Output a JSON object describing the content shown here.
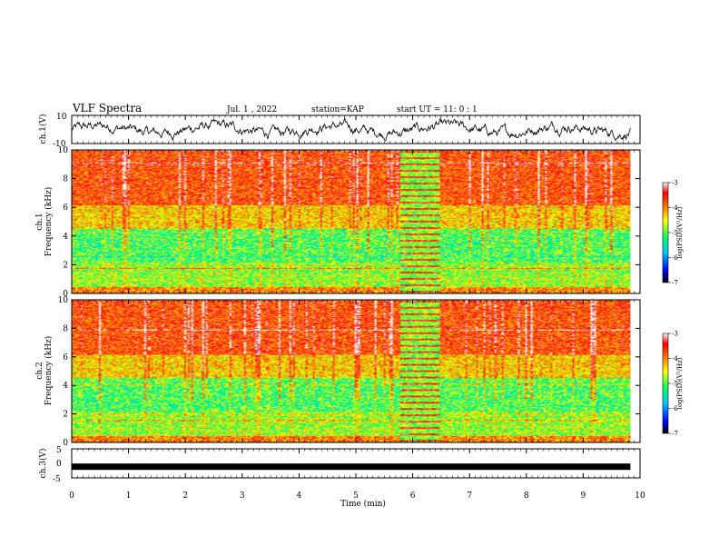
{
  "header": {
    "title": "VLF Spectra",
    "date": "Jul. 1 , 2022",
    "station": "station=KAP",
    "start": "start UT = 11: 0 : 1"
  },
  "colors": {
    "spectrogram_scale": [
      "#000000",
      "#0000ff",
      "#00c8ff",
      "#00ff66",
      "#ffff00",
      "#ff8000",
      "#ff0000",
      "#ffffff"
    ]
  },
  "chart_data": [
    {
      "type": "line",
      "panel": "ch1-waveform",
      "ylabel": "ch.1(V)",
      "ylim": [
        -10,
        10
      ],
      "yticks": [
        "10",
        "-10"
      ],
      "xlim": [
        0,
        10
      ],
      "description_values": "noise-like oscillation roughly between -7 and 7 V"
    },
    {
      "type": "heatmap",
      "panel": "ch1-spectrogram",
      "ylabel": "ch.1\nFrequency (kHz)",
      "ylabel_lines": [
        "ch.1",
        "Frequency (kHz)"
      ],
      "ylim": [
        0,
        10
      ],
      "yticks": [
        "0",
        "2",
        "4",
        "6",
        "8",
        "10"
      ],
      "xlim": [
        0,
        9.83
      ],
      "colorbar": {
        "label": "log(PSD)(V²/Hz)",
        "range": [
          -7,
          -3
        ],
        "ticks": [
          "-3",
          "-4",
          "-5",
          "-6",
          "-7"
        ]
      },
      "burst_interval_min": [
        5.8,
        6.45
      ]
    },
    {
      "type": "heatmap",
      "panel": "ch2-spectrogram",
      "ylabel_lines": [
        "ch.2",
        "Frequency (kHz)"
      ],
      "ylim": [
        0,
        10
      ],
      "yticks": [
        "0",
        "2",
        "4",
        "6",
        "8",
        "10"
      ],
      "xlim": [
        0,
        9.83
      ],
      "colorbar": {
        "label": "log(PSD)(V²/Hz)",
        "range": [
          -7,
          -3
        ],
        "ticks": [
          "-3",
          "-4",
          "-5",
          "-6",
          "-7"
        ]
      },
      "burst_interval_min": [
        5.8,
        6.45
      ]
    },
    {
      "type": "line",
      "panel": "ch3-waveform",
      "ylabel": "ch.3(V)",
      "ylim": [
        -5,
        5
      ],
      "yticks": [
        "5",
        "0",
        "-5"
      ],
      "value": -1,
      "xlim": [
        0,
        9.83
      ]
    }
  ],
  "xaxis": {
    "label": "Time (min)",
    "ticks": [
      "0",
      "1",
      "2",
      "3",
      "4",
      "5",
      "6",
      "7",
      "8",
      "9",
      "10"
    ],
    "range": [
      0,
      10
    ]
  }
}
